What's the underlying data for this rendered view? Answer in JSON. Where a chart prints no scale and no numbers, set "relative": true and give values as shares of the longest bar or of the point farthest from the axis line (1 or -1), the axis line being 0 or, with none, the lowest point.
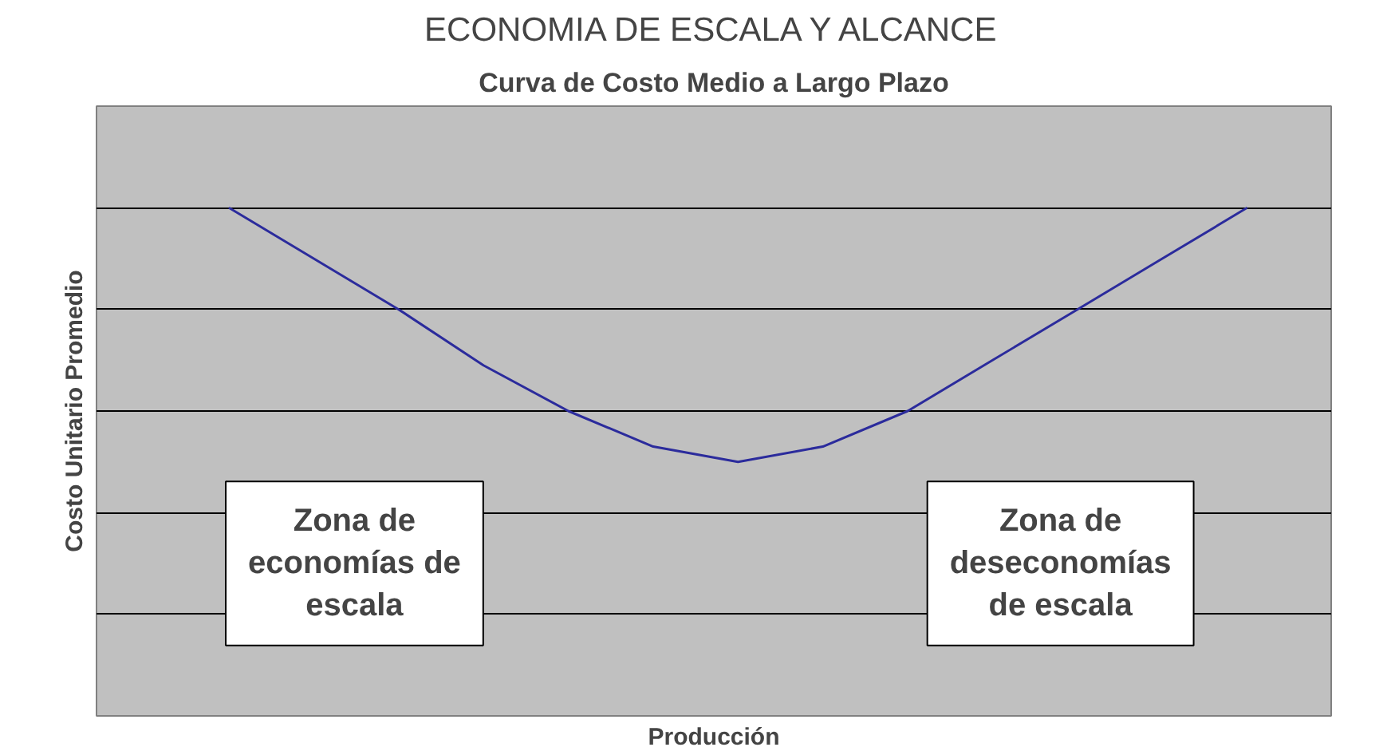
{
  "chart_data": {
    "type": "line",
    "title": "ECONOMIA DE ESCALA Y ALCANCE",
    "subtitle": "Curva de Costo Medio a Largo Plazo",
    "xlabel": "Producción",
    "ylabel": "Costo Unitario Promedio",
    "relative": true,
    "categories": [
      null,
      null,
      null,
      null,
      null,
      null,
      null,
      null,
      null,
      null,
      null,
      null,
      null
    ],
    "series": [
      {
        "color": "#2b2b9c",
        "values": [
          1.0,
          0.9,
          0.8,
          0.69,
          0.6,
          0.53,
          0.5,
          0.53,
          0.6,
          0.7,
          0.8,
          0.9,
          1.0
        ]
      }
    ],
    "annotations": [
      "Zona de economías de escala",
      "Zona de deseconomías de escala"
    ],
    "grid": "y",
    "tick_labels": false,
    "marker": "none",
    "line_style": "solid"
  }
}
